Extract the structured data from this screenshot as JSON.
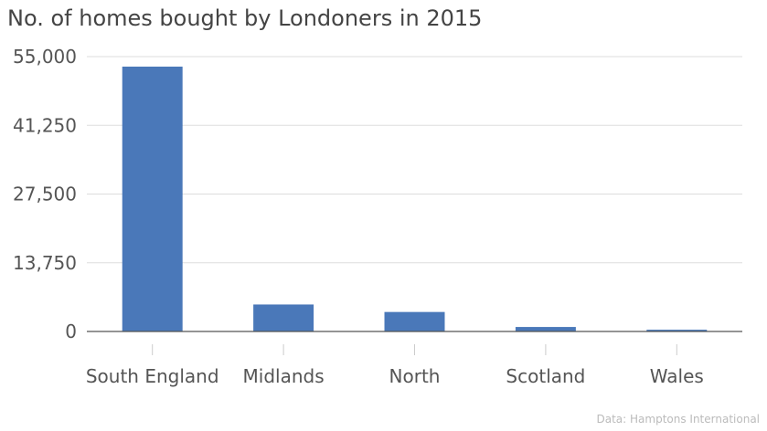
{
  "chart_data": {
    "type": "bar",
    "title": "No. of homes bought by Londoners in 2015",
    "categories": [
      "South England",
      "Midlands",
      "North",
      "Scotland",
      "Wales"
    ],
    "values": [
      53000,
      5400,
      3900,
      900,
      350
    ],
    "yticks": [
      "0",
      "13,750",
      "27,500",
      "41,250",
      "55,000"
    ],
    "ytick_values": [
      0,
      13750,
      27500,
      41250,
      55000
    ],
    "ylim": [
      0,
      55000
    ],
    "xlabel": "",
    "ylabel": "",
    "grid": true,
    "bar_color": "#4a78b9",
    "source": "Data: Hamptons International"
  }
}
